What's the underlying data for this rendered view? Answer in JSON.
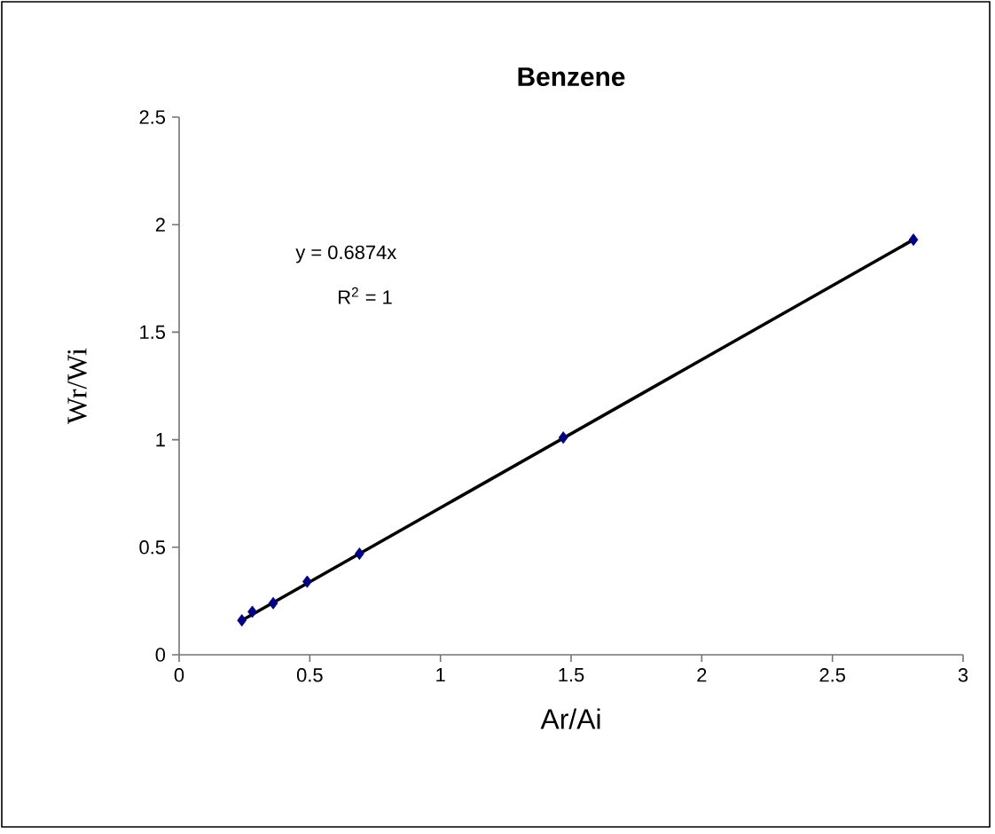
{
  "chart_data": {
    "type": "scatter",
    "title": "Benzene",
    "xlabel": "Ar/Ai",
    "ylabel": "Wr/Wi",
    "xlim": [
      0,
      3
    ],
    "xticks": [
      0,
      0.5,
      1,
      1.5,
      2,
      2.5,
      3
    ],
    "ylim": [
      0,
      2.5
    ],
    "yticks": [
      0,
      0.5,
      1,
      1.5,
      2,
      2.5
    ],
    "marker": "diamond",
    "series": [
      {
        "color": "#000080",
        "x": [
          0.24,
          0.28,
          0.36,
          0.49,
          0.69,
          1.47,
          2.81
        ],
        "values": [
          0.16,
          0.2,
          0.24,
          0.34,
          0.47,
          1.01,
          1.93
        ]
      },
      {
        "type": "line",
        "color": "#000000",
        "marker": "none",
        "x": [
          0.24,
          2.81
        ],
        "values": [
          0.16,
          1.93
        ]
      }
    ],
    "annotations": [
      "y = 0.6874x",
      "R$^{2}$ = 1"
    ]
  }
}
